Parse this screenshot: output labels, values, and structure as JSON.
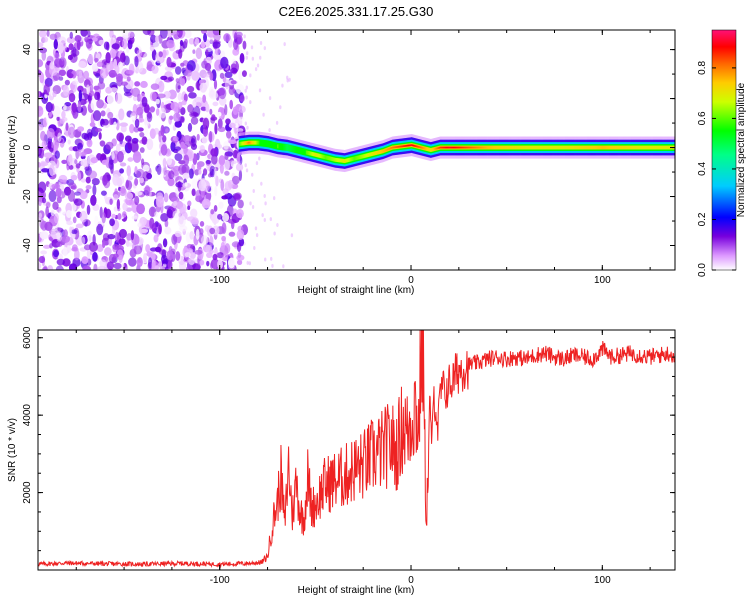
{
  "figure_title": "C2E6.2025.331.17.25.G30",
  "colors": {
    "snr_line": "#ee2222",
    "spectrogram_stops": [
      "#ffffff",
      "#cc88ff",
      "#6600cc",
      "#0000ff",
      "#00ffff",
      "#00ff00",
      "#ffff00",
      "#ff8800",
      "#ff0000",
      "#ff1177"
    ]
  },
  "chart_data": [
    {
      "type": "heatmap",
      "xlabel": "Height of straight line (km)",
      "ylabel": "Frequency (Hz)",
      "xlim": [
        -195,
        138
      ],
      "ylim": [
        -50,
        48
      ],
      "x_ticks": [
        -100,
        0,
        100
      ],
      "x_tick_labels": [
        "-100",
        "0",
        "100"
      ],
      "y_ticks": [
        -40,
        -20,
        0,
        20,
        40
      ],
      "y_tick_labels": [
        "-40",
        "-20",
        "0",
        "20",
        "40"
      ],
      "colorbar": {
        "label": "Normalized spectral amplitude",
        "range": [
          0.0,
          0.95
        ],
        "ticks": [
          0.0,
          0.2,
          0.4,
          0.6,
          0.8
        ],
        "tick_labels": [
          "0.0",
          "0.2",
          "0.4",
          "0.6",
          "0.8"
        ]
      },
      "noise_region_x": [
        -195,
        -87
      ],
      "signal_track": {
        "x": [
          -90,
          -85,
          -80,
          -75,
          -70,
          -65,
          -60,
          -55,
          -50,
          -45,
          -40,
          -35,
          -30,
          -25,
          -20,
          -15,
          -10,
          -5,
          0,
          5,
          10,
          15,
          20,
          40,
          60,
          80,
          100,
          120,
          138
        ],
        "frequency": [
          1.5,
          2.0,
          2.0,
          1.5,
          0.5,
          0.0,
          -1.0,
          -2.0,
          -3.0,
          -4.0,
          -5.0,
          -5.5,
          -4.5,
          -3.5,
          -2.5,
          -1.5,
          0.0,
          0.5,
          1.0,
          0.0,
          -1.0,
          0.0,
          0.0,
          0.0,
          0.0,
          0.0,
          0.0,
          0.0,
          0.0
        ],
        "amplitude": [
          0.6,
          0.8,
          0.6,
          0.55,
          0.6,
          0.5,
          0.55,
          0.6,
          0.7,
          0.6,
          0.65,
          0.7,
          0.6,
          0.65,
          0.7,
          0.75,
          0.8,
          0.85,
          0.9,
          0.8,
          0.7,
          0.85,
          0.9,
          0.75,
          0.7,
          0.7,
          0.75,
          0.7,
          0.7
        ]
      }
    },
    {
      "type": "line",
      "xlabel": "Height of straight line (km)",
      "ylabel": "SNR (10 * v/v)",
      "xlim": [
        -195,
        138
      ],
      "ylim": [
        0,
        6200
      ],
      "x_ticks": [
        -100,
        0,
        100
      ],
      "x_tick_labels": [
        "-100",
        "0",
        "100"
      ],
      "y_ticks": [
        2000,
        4000,
        6000
      ],
      "y_tick_labels": [
        "2000",
        "4000",
        "6000"
      ],
      "series": [
        {
          "x": [
            -195,
            -180,
            -160,
            -140,
            -120,
            -100,
            -85,
            -78,
            -75,
            -72,
            -70,
            -68,
            -66,
            -64,
            -62,
            -60,
            -58,
            -56,
            -54,
            -52,
            -50,
            -45,
            -40,
            -35,
            -30,
            -25,
            -20,
            -15,
            -10,
            -8,
            -6,
            -4,
            -2,
            0,
            2,
            4,
            5,
            6,
            7,
            8,
            9,
            10,
            11,
            12,
            13,
            14,
            15,
            16,
            18,
            20,
            22,
            24,
            26,
            30,
            35,
            40,
            45,
            50,
            55,
            60,
            65,
            70,
            75,
            80,
            85,
            90,
            95,
            100,
            105,
            110,
            115,
            120,
            125,
            130,
            135,
            138
          ],
          "values": [
            150,
            180,
            160,
            150,
            170,
            150,
            170,
            200,
            350,
            1300,
            1700,
            2400,
            1200,
            2700,
            1400,
            2300,
            1500,
            1300,
            2400,
            1600,
            1700,
            2200,
            2300,
            2400,
            2600,
            2700,
            2950,
            3100,
            3300,
            3000,
            3400,
            3800,
            3500,
            3900,
            4300,
            3700,
            5200,
            6200,
            3500,
            1300,
            2600,
            4100,
            3300,
            4500,
            4200,
            3600,
            4400,
            4700,
            4600,
            4800,
            4900,
            5100,
            5200,
            5300,
            5350,
            5450,
            5500,
            5450,
            5500,
            5450,
            5550,
            5600,
            5500,
            5450,
            5550,
            5500,
            5450,
            5700,
            5500,
            5550,
            5600,
            5550,
            5500,
            5550,
            5600,
            5500
          ]
        }
      ]
    }
  ]
}
